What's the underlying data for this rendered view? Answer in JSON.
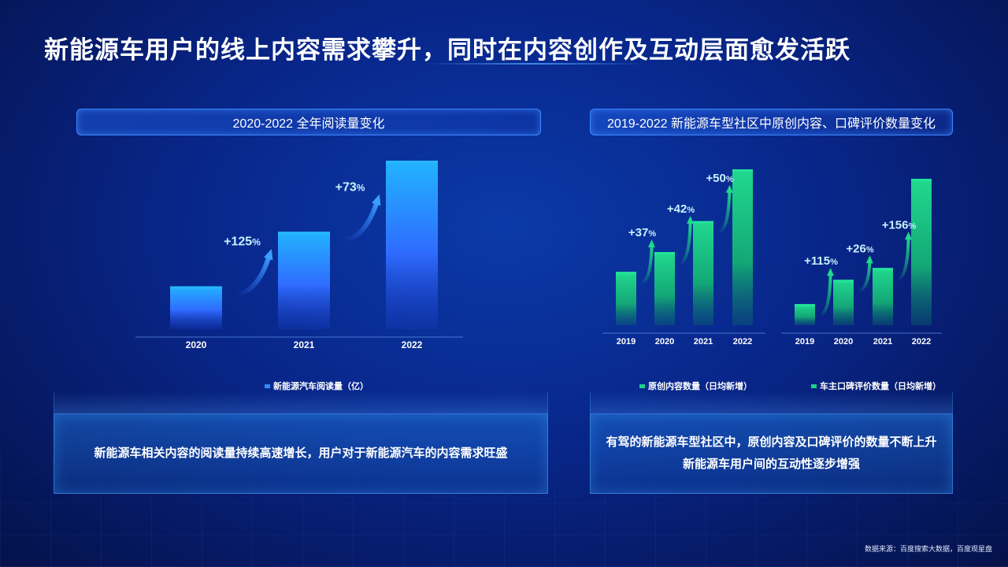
{
  "title": "新能源车用户的线上内容需求攀升，同时在内容创作及互动层面愈发活跃",
  "left_panel": {
    "header": "2020-2022 全年阅读量变化",
    "legend": "新能源汽车阅读量（亿）",
    "note": "新能源车相关内容的阅读量持续高速增长，用户对于新能源汽车的内容需求旺盛"
  },
  "right_panel": {
    "header": "2019-2022 新能源车型社区中原创内容、口碑评价数量变化",
    "legend_a": "原创内容数量（日均新增）",
    "legend_b": "车主口碑评价数量（日均新增）",
    "note_line1": "有驾的新能源车型社区中，原创内容及口碑评价的数量不断上升",
    "note_line2": "新能源车用户间的互动性逐步增强"
  },
  "source": "数据来源：百度搜索大数据，百度观星盘",
  "colors": {
    "blue_bar": "#2fa8ff",
    "green_bar": "#1fd08a",
    "accent": "#3f86ff"
  },
  "chart_data": [
    {
      "type": "bar",
      "title": "2020-2022 全年阅读量变化",
      "categories": [
        "2020",
        "2021",
        "2022"
      ],
      "series": [
        {
          "name": "新能源汽车阅读量（亿）",
          "values": [
            0.44,
            1.0,
            1.73
          ]
        }
      ],
      "growth_labels": [
        "+125%",
        "+73%"
      ]
    },
    {
      "type": "bar",
      "title": "2019-2022 新能源车型社区中原创内容、口碑评价数量变化",
      "categories": [
        "2019",
        "2020",
        "2021",
        "2022"
      ],
      "series": [
        {
          "name": "原创内容数量（日均新增）",
          "values": [
            1.0,
            1.37,
            1.95,
            2.92
          ]
        }
      ],
      "growth_labels": [
        "+37%",
        "+42%",
        "+50%"
      ]
    },
    {
      "type": "bar",
      "categories": [
        "2019",
        "2020",
        "2021",
        "2022"
      ],
      "series": [
        {
          "name": "车主口碑评价数量（日均新增）",
          "values": [
            1.0,
            2.15,
            2.71,
            6.93
          ]
        }
      ],
      "growth_labels": [
        "+115%",
        "+26%",
        "+156%"
      ]
    }
  ]
}
